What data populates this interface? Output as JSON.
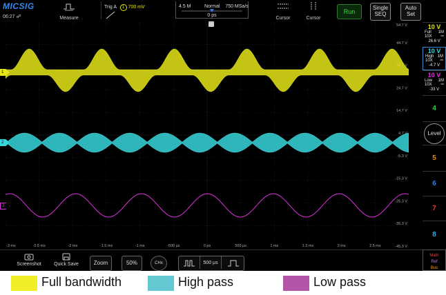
{
  "header": {
    "brand": "MICSIG",
    "clock": "06:27",
    "measure_label": "Measure",
    "trigger": {
      "label": "Trig A",
      "channel": "1",
      "level": "700 mV"
    },
    "timebase": {
      "memory": "4.5 M",
      "mode": "Normal",
      "rate": "750 MSa/s",
      "offset": "0 ps"
    },
    "cursor1_label": "Cursor",
    "cursor2_label": "Cursor",
    "run_label": "Run",
    "single_label": "Single",
    "single_sub": "SEQ",
    "auto_label": "Auto",
    "auto_sub": "Set"
  },
  "volt_labels": [
    "54.7 V",
    "44.7 V",
    "34.7 V",
    "24.7 V",
    "14.7 V",
    "4.7 V",
    "-5.3 V",
    "-15.3 V",
    "-25.3 V",
    "-35.3 V",
    "-45.3 V"
  ],
  "time_labels": [
    "-3 ms",
    "-2.5 ms",
    "-2 ms",
    "-1.5 ms",
    "-1 ms",
    "-500 µs",
    "0 ps",
    "500 µs",
    "1 ms",
    "1.5 ms",
    "2 ms",
    "2.5 ms"
  ],
  "channels": [
    {
      "num": "1",
      "scale": "10 V",
      "bw": "Full",
      "imp": "1M",
      "probe": "10X",
      "unit": "⎓",
      "offset": "26.6 V",
      "color": "#e6e619"
    },
    {
      "num": "2",
      "scale": "10 V",
      "bw": "High",
      "imp": "1M",
      "probe": "10X",
      "unit": "⎓",
      "offset": "-4.7 V",
      "color": "#36d6dc"
    },
    {
      "num": "3",
      "scale": "10 V",
      "bw": "Low",
      "imp": "1M",
      "probe": "10X",
      "unit": "⎓",
      "offset": "-33 V",
      "color": "#e02fe0"
    }
  ],
  "side_buttons": {
    "ch4": "4",
    "level": "Level",
    "ch5": "5",
    "ch6": "6",
    "ch7": "7",
    "ch8": "8",
    "math": "Math",
    "ref": "Ref",
    "bus": "Bus"
  },
  "bottom": {
    "screenshot": "Screenshot",
    "quicksave": "Quick Save",
    "zoom": "Zoom",
    "percent": "50%",
    "chx": "CHx",
    "timebase": "500 µs"
  },
  "legend": [
    {
      "label": "Full bandwidth",
      "color": "#f1ee27"
    },
    {
      "label": "High pass",
      "color": "#63c8d2"
    },
    {
      "label": "Low pass",
      "color": "#b454a7"
    }
  ],
  "colors": {
    "ch4": "#2cd63c",
    "ch5": "#f08a1e",
    "ch6": "#2e7df0",
    "ch7": "#f03a3a",
    "ch8": "#35a6f0",
    "math": "#f03a3a",
    "ref": "#c070f0",
    "bus": "#f0a020"
  }
}
